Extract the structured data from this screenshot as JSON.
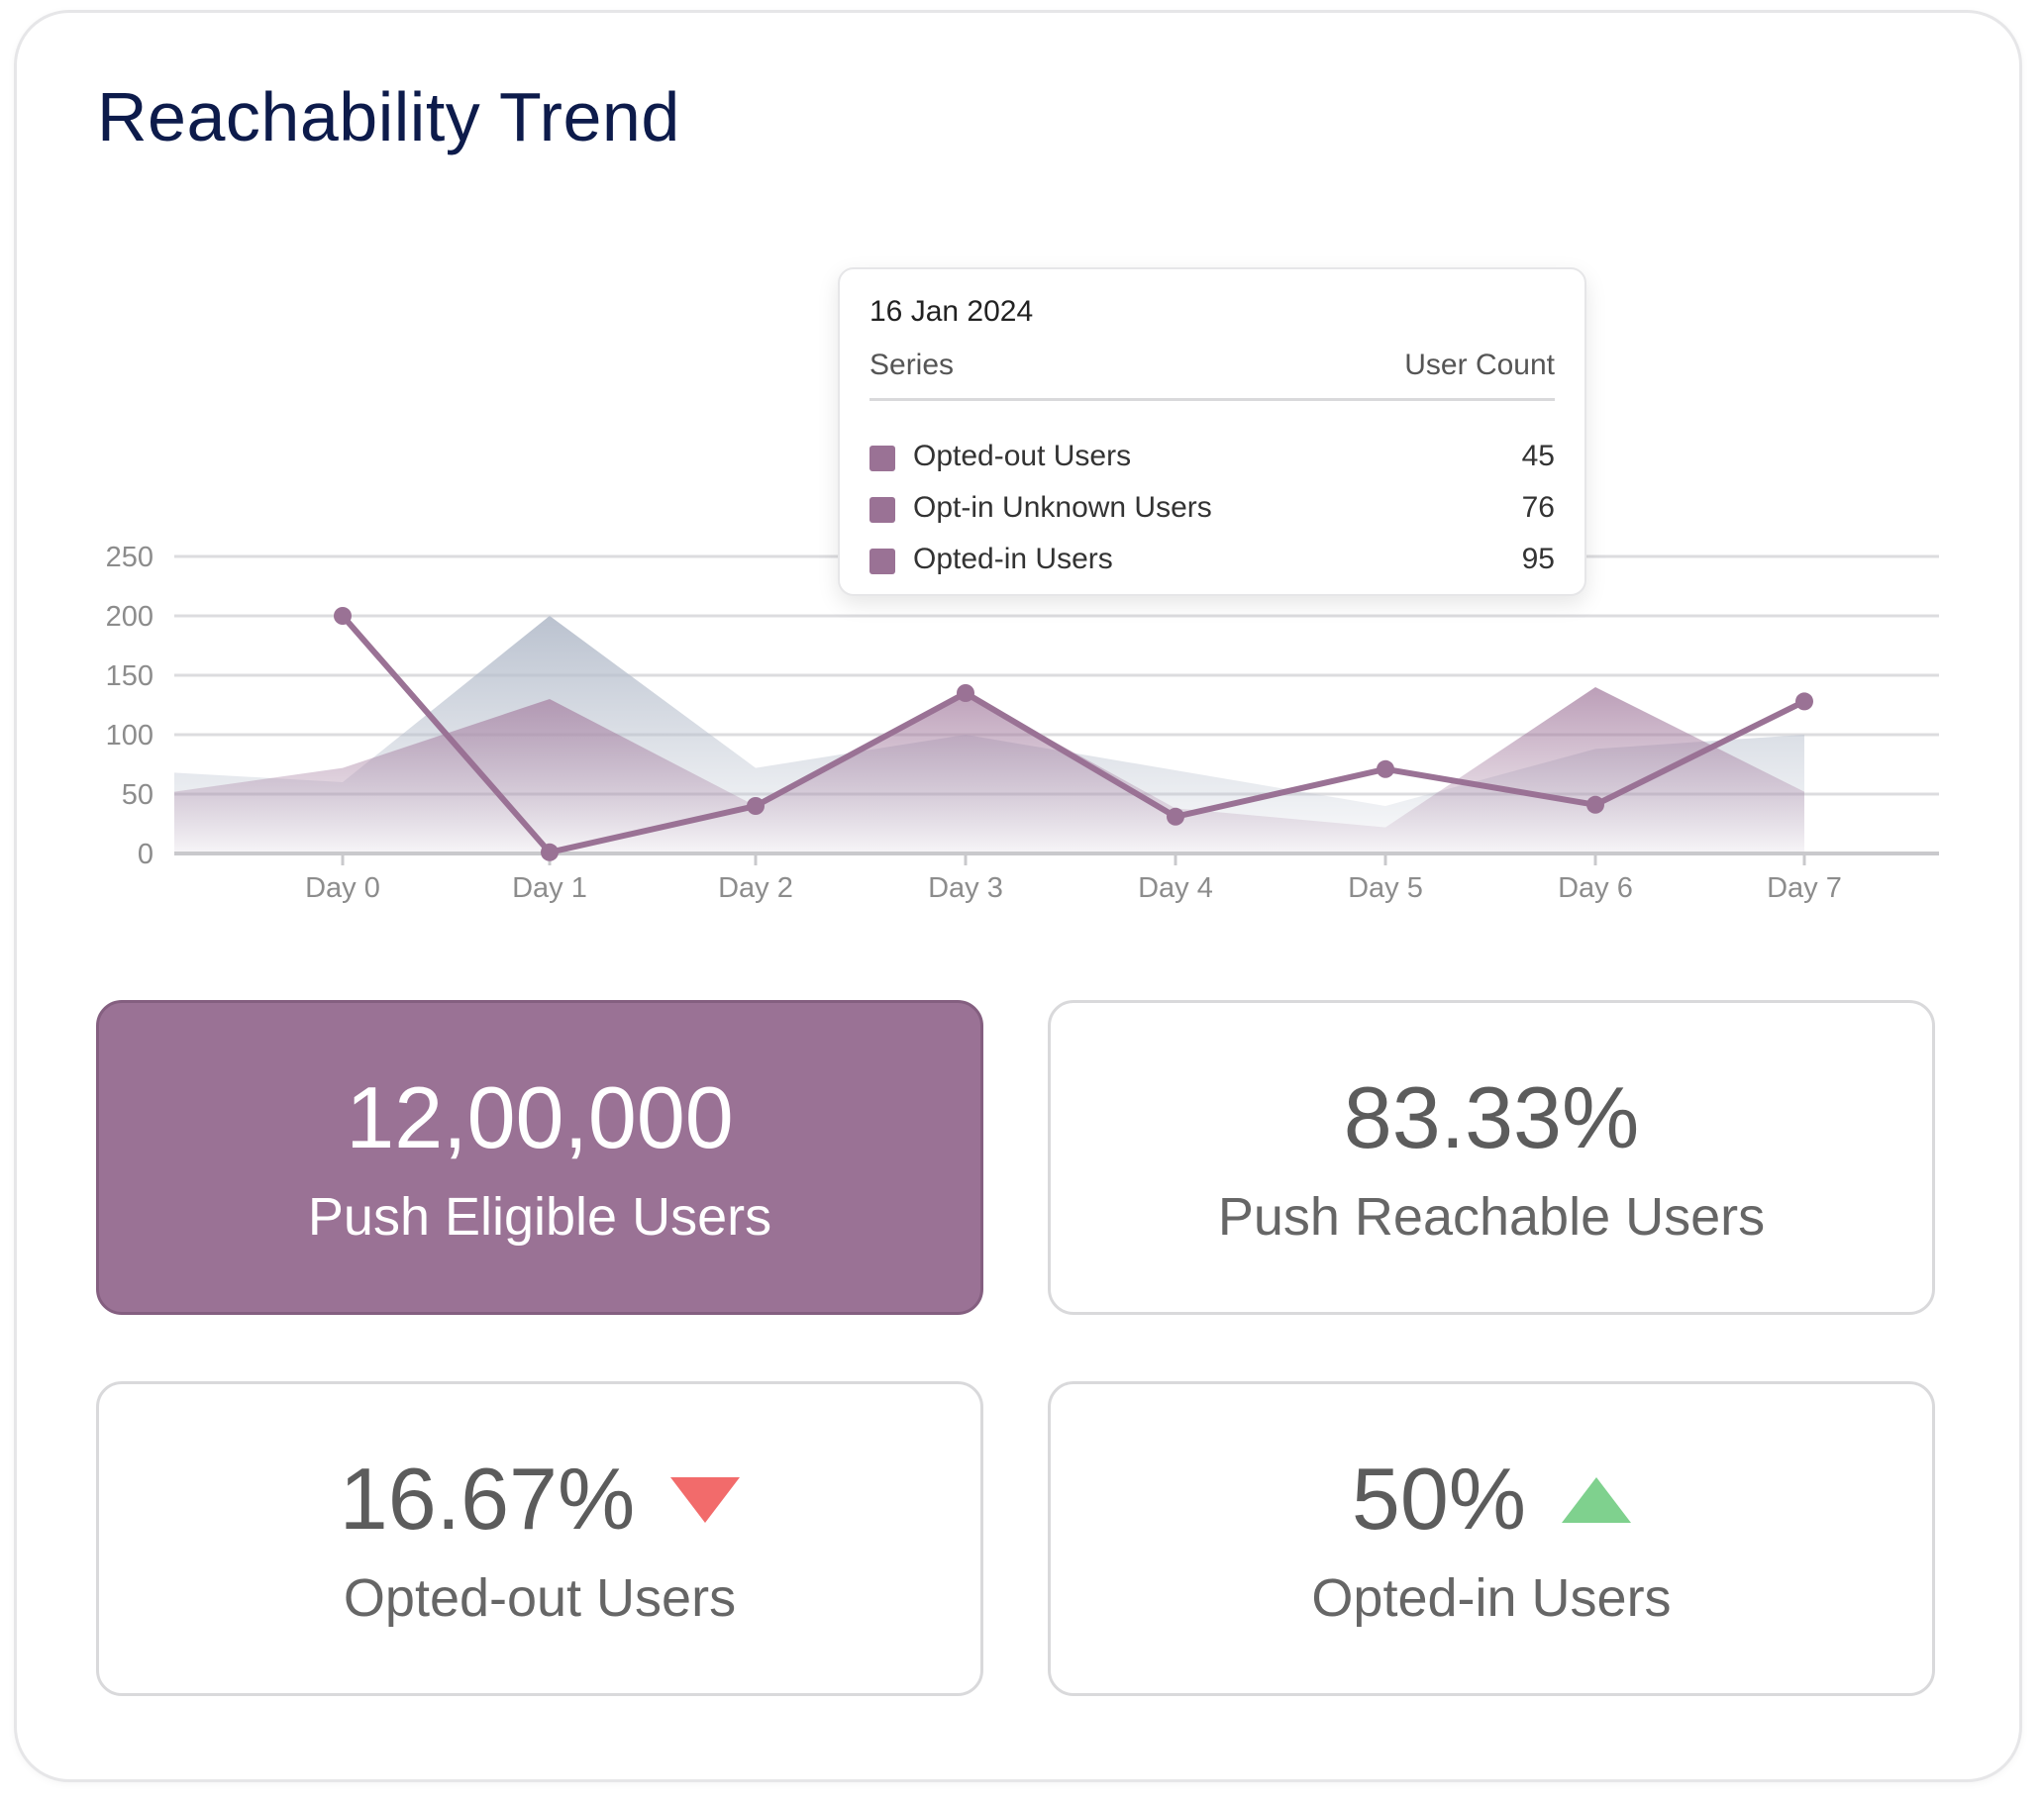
{
  "title": "Reachability Trend",
  "tooltip": {
    "date": "16 Jan 2024",
    "col_series": "Series",
    "col_count": "User Count",
    "rows": [
      {
        "label": "Opted-out Users",
        "value": "45"
      },
      {
        "label": "Opt-in Unknown Users",
        "value": "76"
      },
      {
        "label": "Opted-in Users",
        "value": "95"
      }
    ]
  },
  "stats": [
    {
      "value": "12,00,000",
      "label": "Push Eligible Users"
    },
    {
      "value": "83.33%",
      "label": "Push Reachable Users"
    },
    {
      "value": "16.67%",
      "label": "Opted-out Users",
      "trend": "down"
    },
    {
      "value": "50%",
      "label": "Opted-in Users",
      "trend": "up"
    }
  ],
  "colors": {
    "accent": "#9a7295",
    "down": "#f26b6b",
    "up": "#7fd18e",
    "title": "#0d1b4b"
  },
  "chart_data": {
    "type": "line",
    "categories": [
      "Day 0",
      "Day 1",
      "Day 2",
      "Day 3",
      "Day 4",
      "Day 5",
      "Day 6",
      "Day 7"
    ],
    "ylim": [
      0,
      250
    ],
    "yticks": [
      0,
      50,
      100,
      150,
      200,
      250
    ],
    "grid": true,
    "series": [
      {
        "type": "area",
        "values": [
          60,
          200,
          72,
          100,
          70,
          40,
          88,
          100
        ],
        "start": 68,
        "color": "#b7bfcd"
      },
      {
        "type": "area",
        "values": [
          72,
          130,
          40,
          135,
          38,
          22,
          140,
          52
        ],
        "start": 52,
        "color": "#bfa4bd"
      },
      {
        "type": "line",
        "values": [
          200,
          1,
          40,
          135,
          31,
          71,
          41,
          128
        ],
        "color": "#9a7295"
      }
    ]
  }
}
